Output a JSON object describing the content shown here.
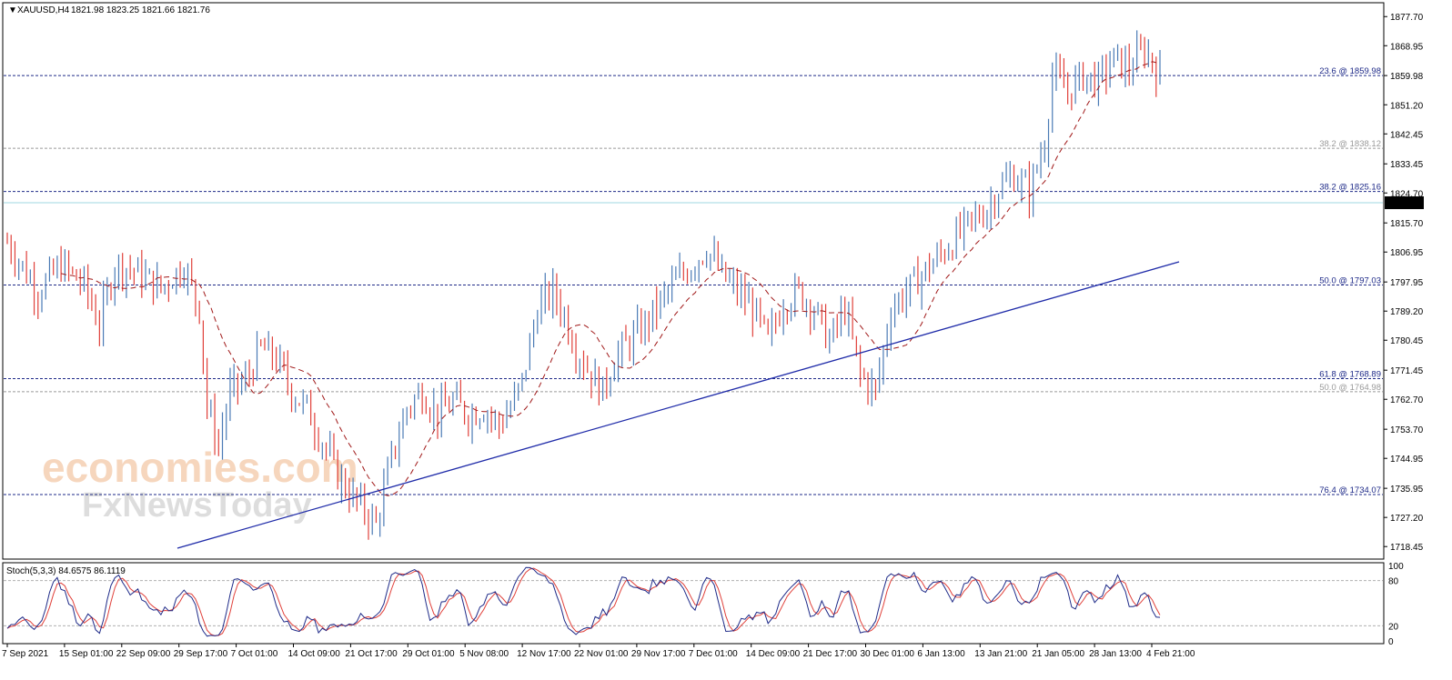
{
  "header": {
    "symbol": "XAUUSD,H4",
    "ohlc": "1821.98 1823.25 1821.66 1821.76"
  },
  "watermark": {
    "line1": "economies.com",
    "line2": "FxNewsToday"
  },
  "colors": {
    "background": "#ffffff",
    "bull_candle": "#4a7ab5",
    "bear_candle": "#e0403a",
    "moving_average": "#a01818",
    "trendline": "#1e2aa8",
    "fib_line": "#1e2a88",
    "fib_line_light": "#9a9a9a",
    "current_price_line": "#9fd7e0",
    "stoch_main": "#1e2a88",
    "stoch_signal": "#e0403a"
  },
  "price_axis": {
    "ticks": [
      "1877.70",
      "1868.95",
      "1859.98",
      "1851.20",
      "1842.45",
      "1833.45",
      "1824.70",
      "1815.70",
      "1806.95",
      "1797.95",
      "1789.20",
      "1780.45",
      "1771.45",
      "1762.70",
      "1753.70",
      "1744.95",
      "1735.95",
      "1727.20",
      "1718.45"
    ],
    "current_price": "1821.76"
  },
  "time_axis": {
    "labels": [
      "7 Sep 2021",
      "15 Sep 01:00",
      "22 Sep 09:00",
      "29 Sep 17:00",
      "7 Oct 01:00",
      "14 Oct 09:00",
      "21 Oct 17:00",
      "29 Oct 01:00",
      "5 Nov 08:00",
      "12 Nov 17:00",
      "22 Nov 01:00",
      "29 Nov 17:00",
      "7 Dec 01:00",
      "14 Dec 09:00",
      "21 Dec 17:00",
      "30 Dec 01:00",
      "6 Jan 13:00",
      "13 Jan 21:00",
      "21 Jan 05:00",
      "28 Jan 13:00",
      "4 Feb 21:00"
    ]
  },
  "fib_levels": [
    {
      "label": "23.6 @ 1859.98",
      "price": 1859.98,
      "style": "dark"
    },
    {
      "label": "38.2 @ 1838.12",
      "price": 1838.12,
      "style": "light"
    },
    {
      "label": "38.2 @ 1825.16",
      "price": 1825.16,
      "style": "dark"
    },
    {
      "label": "50.0 @ 1797.03",
      "price": 1797.03,
      "style": "dark"
    },
    {
      "label": "61.8 @ 1768.89",
      "price": 1768.89,
      "style": "dark"
    },
    {
      "label": "50.0 @ 1764.98",
      "price": 1764.98,
      "style": "light"
    },
    {
      "label": "76.4 @ 1734.07",
      "price": 1734.07,
      "style": "dark"
    }
  ],
  "indicator": {
    "label": "Stoch(5,3,3) 84.6575 86.1119",
    "axis_ticks": [
      "100",
      "80",
      "20",
      "0"
    ],
    "levels": [
      80,
      20
    ]
  },
  "chart_data": {
    "type": "line",
    "title": "XAUUSD,H4",
    "ylim": [
      1715.5,
      1880.5
    ],
    "x_range": [
      0,
      300
    ],
    "close_path": [
      [
        0,
        1810
      ],
      [
        8,
        1795
      ],
      [
        14,
        1803
      ],
      [
        20,
        1797
      ],
      [
        24,
        1785
      ],
      [
        28,
        1803
      ],
      [
        32,
        1802
      ],
      [
        40,
        1796
      ],
      [
        46,
        1803
      ],
      [
        50,
        1790
      ],
      [
        52,
        1760
      ],
      [
        55,
        1749
      ],
      [
        58,
        1765
      ],
      [
        62,
        1768
      ],
      [
        66,
        1778
      ],
      [
        70,
        1775
      ],
      [
        74,
        1765
      ],
      [
        78,
        1760
      ],
      [
        82,
        1750
      ],
      [
        86,
        1740
      ],
      [
        90,
        1733
      ],
      [
        94,
        1728
      ],
      [
        96,
        1725
      ],
      [
        100,
        1745
      ],
      [
        104,
        1760
      ],
      [
        108,
        1765
      ],
      [
        112,
        1758
      ],
      [
        116,
        1762
      ],
      [
        120,
        1758
      ],
      [
        124,
        1760
      ],
      [
        128,
        1755
      ],
      [
        132,
        1762
      ],
      [
        134,
        1768
      ],
      [
        138,
        1790
      ],
      [
        142,
        1795
      ],
      [
        145,
        1788
      ],
      [
        148,
        1778
      ],
      [
        152,
        1770
      ],
      [
        155,
        1765
      ],
      [
        158,
        1775
      ],
      [
        162,
        1780
      ],
      [
        166,
        1785
      ],
      [
        170,
        1792
      ],
      [
        174,
        1798
      ],
      [
        178,
        1803
      ],
      [
        182,
        1808
      ],
      [
        186,
        1800
      ],
      [
        190,
        1795
      ],
      [
        194,
        1790
      ],
      [
        198,
        1780
      ],
      [
        202,
        1792
      ],
      [
        206,
        1795
      ],
      [
        210,
        1790
      ],
      [
        214,
        1780
      ],
      [
        218,
        1790
      ],
      [
        222,
        1770
      ],
      [
        226,
        1765
      ],
      [
        230,
        1790
      ],
      [
        234,
        1795
      ],
      [
        238,
        1800
      ],
      [
        242,
        1805
      ],
      [
        246,
        1810
      ],
      [
        250,
        1815
      ],
      [
        255,
        1820
      ],
      [
        258,
        1826
      ],
      [
        262,
        1830
      ],
      [
        266,
        1825
      ],
      [
        270,
        1840
      ],
      [
        272,
        1860
      ],
      [
        276,
        1855
      ],
      [
        280,
        1860
      ],
      [
        284,
        1858
      ],
      [
        288,
        1865
      ],
      [
        292,
        1862
      ],
      [
        296,
        1868
      ],
      [
        300,
        1860
      ]
    ],
    "notes": "Candlestick price series approximated as a close path in price units; full series reconstructed by script."
  }
}
